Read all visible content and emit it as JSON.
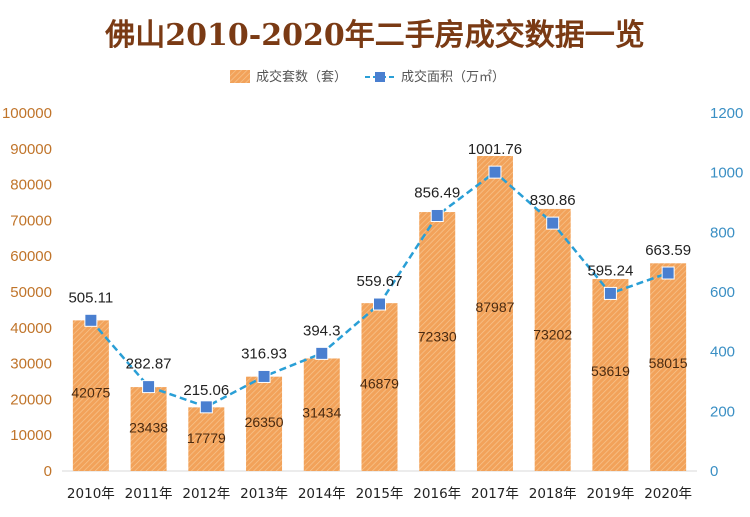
{
  "chart_data": {
    "type": "bar+line",
    "title": "佛山2010-2020年二手房成交数据一览",
    "categories": [
      "2010年",
      "2011年",
      "2012年",
      "2013年",
      "2014年",
      "2015年",
      "2016年",
      "2017年",
      "2018年",
      "2019年",
      "2020年"
    ],
    "series": [
      {
        "name": "成交套数（套）",
        "type": "bar",
        "axis": "left",
        "color": "#f2a25a",
        "values": [
          42075,
          23438,
          17779,
          26350,
          31434,
          46879,
          72330,
          87987,
          73202,
          53619,
          58015
        ],
        "labels": [
          "42075",
          "23438",
          "17779",
          "26350",
          "31434",
          "46879",
          "72330",
          "87987",
          "73202",
          "53619",
          "58015"
        ]
      },
      {
        "name": "成交面积（万㎡）",
        "type": "line",
        "axis": "right",
        "color": "#2a9fd6",
        "marker_color": "#4a7fd0",
        "values": [
          505.11,
          282.87,
          215.06,
          316.93,
          394.3,
          559.67,
          856.49,
          1001.76,
          830.86,
          595.24,
          663.59
        ],
        "labels": [
          "505.11",
          "282.87",
          "215.06",
          "316.93",
          "394.3",
          "559.67",
          "856.49",
          "1001.76",
          "830.86",
          "595.24",
          "663.59"
        ]
      }
    ],
    "y_left": {
      "range": [
        0,
        100000
      ],
      "ticks": [
        "0",
        "10000",
        "20000",
        "30000",
        "40000",
        "50000",
        "60000",
        "70000",
        "80000",
        "90000",
        "100000"
      ]
    },
    "y_right": {
      "range": [
        0,
        1200
      ],
      "ticks": [
        "0",
        "200",
        "400",
        "600",
        "800",
        "1000",
        "1200"
      ]
    },
    "legend": "top-center",
    "grid": false
  },
  "colors": {
    "title": "#7a3a14",
    "axis_left": "#c0742a",
    "axis_right": "#3a8fc4",
    "bar": "#f2a25a",
    "line": "#2a9fd6",
    "marker": "#4a7fd0"
  }
}
